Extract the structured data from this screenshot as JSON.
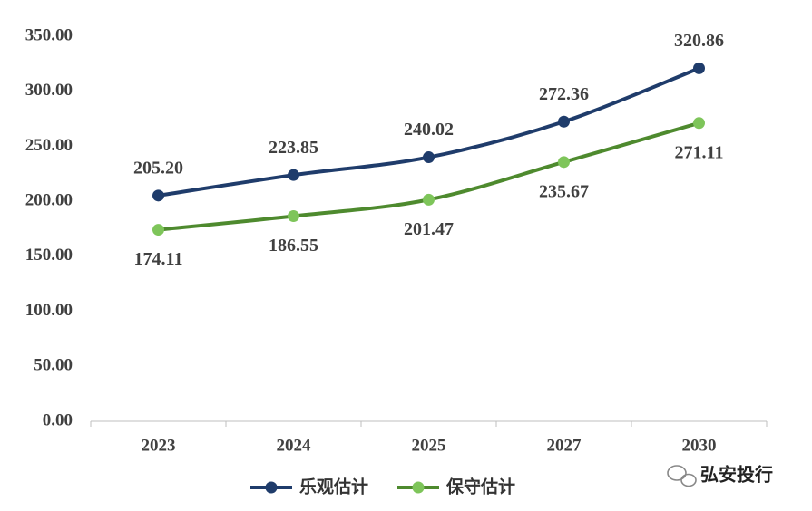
{
  "chart_data": {
    "type": "line",
    "categories": [
      "2023",
      "2024",
      "2025",
      "2027",
      "2030"
    ],
    "series": [
      {
        "name": "乐观估计",
        "color": "#1f3c6b",
        "marker_color": "#1f3c6b",
        "values": [
          205.2,
          223.85,
          240.02,
          272.36,
          320.86
        ],
        "value_labels": [
          "205.20",
          "223.85",
          "240.02",
          "272.36",
          "320.86"
        ],
        "label_position": "above"
      },
      {
        "name": "保守估计",
        "color": "#4e8a2e",
        "marker_color": "#7ec55a",
        "values": [
          174.11,
          186.55,
          201.47,
          235.67,
          271.11
        ],
        "value_labels": [
          "174.11",
          "186.55",
          "201.47",
          "235.67",
          "271.11"
        ],
        "label_position": "below"
      }
    ],
    "ylim": [
      0,
      350
    ],
    "yticks": [
      {
        "value": 0,
        "label": "0.00"
      },
      {
        "value": 50,
        "label": "50.00"
      },
      {
        "value": 100,
        "label": "100.00"
      },
      {
        "value": 150,
        "label": "150.00"
      },
      {
        "value": 200,
        "label": "200.00"
      },
      {
        "value": 250,
        "label": "250.00"
      },
      {
        "value": 300,
        "label": "300.00"
      },
      {
        "value": 350,
        "label": "350.00"
      }
    ],
    "grid": false,
    "legend": "bottom",
    "watermark": "弘安投行"
  }
}
